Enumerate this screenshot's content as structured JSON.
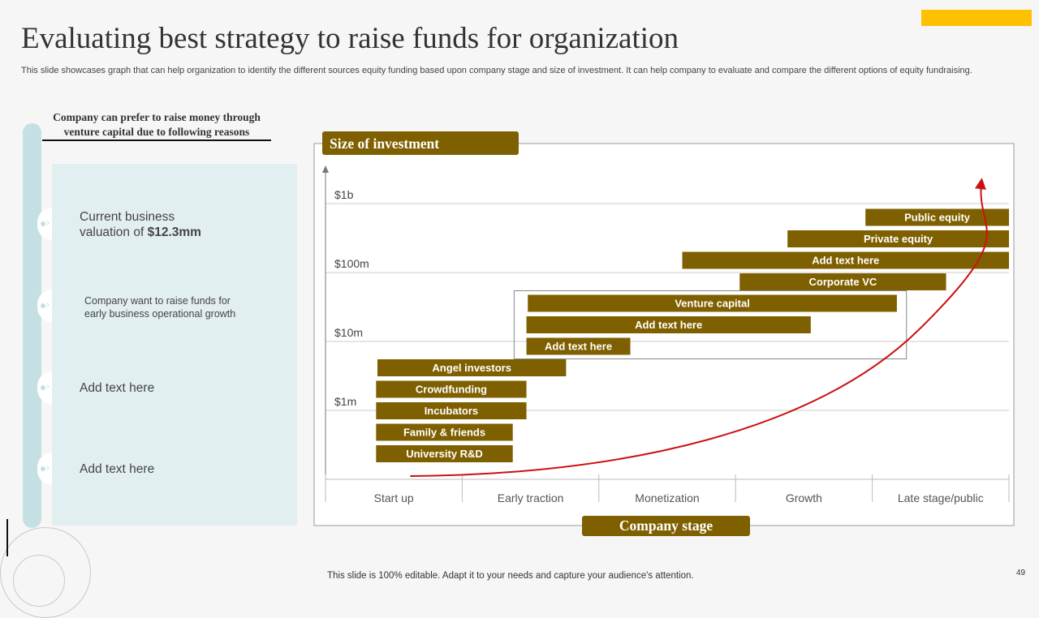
{
  "title": "Evaluating best strategy to raise funds for organization",
  "subtitle": "This slide showcases graph that can help organization to identify the different sources equity funding based upon company stage and size of investment. It can help company to  evaluate and compare the different options of equity fundraising.",
  "left_panel": {
    "heading": "Company can prefer to raise money through venture capital due to following reasons",
    "reasons": [
      {
        "prefix": "Current business valuation  of ",
        "bold": "$12.3mm"
      },
      {
        "text": "Company want to raise funds for early business operational  growth"
      },
      {
        "text": "Add text here"
      },
      {
        "text": "Add text here"
      }
    ]
  },
  "chart_data": {
    "type": "bar",
    "subtype": "gantt-range",
    "ylabel": "Size of investment",
    "xlabel": "Company stage",
    "x_ticks": [
      "Start up",
      "Early traction",
      "Monetization",
      "Growth",
      "Late stage/public"
    ],
    "x_range": [
      0,
      5
    ],
    "y_ticks": [
      "$1m",
      "$10m",
      "$100m",
      "$1b"
    ],
    "bars": [
      {
        "label": "University  R&D",
        "start": 0.37,
        "end": 1.37
      },
      {
        "label": "Family & friends",
        "start": 0.37,
        "end": 1.37
      },
      {
        "label": "Incubators",
        "start": 0.37,
        "end": 1.47
      },
      {
        "label": "Crowdfunding",
        "start": 0.37,
        "end": 1.47
      },
      {
        "label": "Angel investors",
        "start": 0.38,
        "end": 1.76
      },
      {
        "label": "Add text here",
        "start": 1.47,
        "end": 2.23
      },
      {
        "label": "Add text here",
        "start": 1.47,
        "end": 3.55
      },
      {
        "label": "Venture capital",
        "start": 1.48,
        "end": 4.18
      },
      {
        "label": "Corporate VC",
        "start": 3.03,
        "end": 4.54
      },
      {
        "label": "Add text here",
        "start": 2.61,
        "end": 5.0
      },
      {
        "label": "Private equity",
        "start": 3.38,
        "end": 5.0
      },
      {
        "label": "Public equity",
        "start": 3.95,
        "end": 5.0
      }
    ],
    "highlight": {
      "start": 1.38,
      "end": 4.25,
      "from_bar": 5,
      "to_bar": 7
    },
    "trend": "exponential growth arrow from Start up toward Late stage/public",
    "colors": {
      "bar": "#7f6000",
      "bar_text": "#ffffff",
      "arrow": "#cc1111",
      "grid": "#cccccc",
      "label_box": "#7f6000"
    }
  },
  "footer": "This slide is 100% editable. Adapt it to your needs and capture your audience's attention.",
  "page_number": "49"
}
